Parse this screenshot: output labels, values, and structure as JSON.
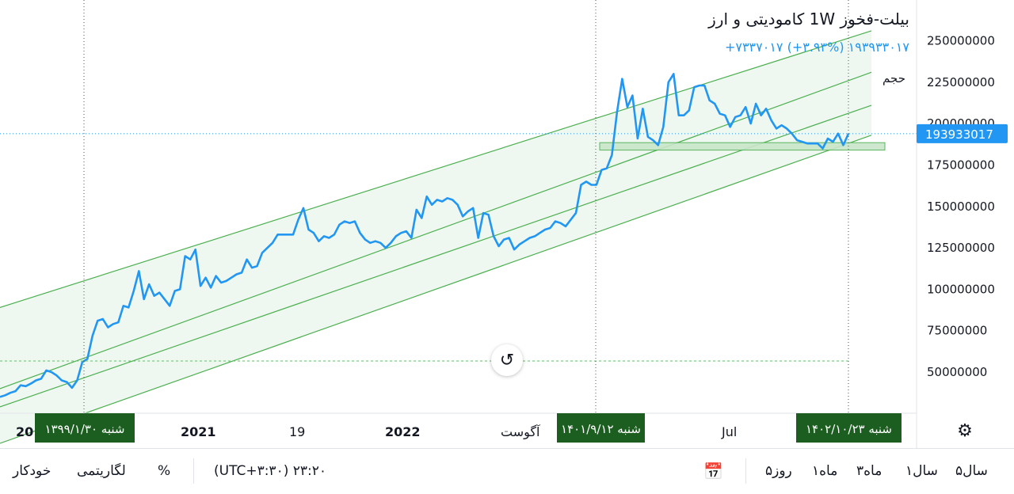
{
  "legend": {
    "title": "بیلت-فخوز 1W کامودیتی و ارز",
    "price": "+۷۳۳۷۰۱۷ (+۳.۹۳%)  ۱۹۳۹۳۳۰۱۷",
    "volume": "حجم"
  },
  "colors": {
    "series": "#2196f3",
    "channel": "#4caf50",
    "channel_fill": "#e8f5e9",
    "last_price_label": "#2196f3",
    "date_label_bg": "#1b5e20"
  },
  "chart_data": {
    "type": "line",
    "y_axis": {
      "ticks": [
        "250000000",
        "225000000",
        "200000000",
        "175000000",
        "150000000",
        "125000000",
        "100000000",
        "75000000",
        "50000000"
      ],
      "range": [
        30000000,
        270000000
      ]
    },
    "x_axis": {
      "ticks": [
        "20",
        "2021",
        "19",
        "2022",
        "آگوست",
        "Jul"
      ],
      "date_labels": [
        "شنبه ۱۳۹۹/۱/۳۰",
        "شنبه ۱۴۰۱/۹/۱۲",
        "شنبه ۱۴۰۲/۱۰/۲۳"
      ]
    },
    "last_price": "193933017",
    "last_value": 193933017,
    "series": [
      {
        "values": [
          35000000,
          36000000,
          37500000,
          38500000,
          42000000,
          41500000,
          43000000,
          45000000,
          46000000,
          51000000,
          50000000,
          48000000,
          45000000,
          44000000,
          40500000,
          45000000,
          56000000,
          58000000,
          72000000,
          81000000,
          82000000,
          77000000,
          79000000,
          80000000,
          90000000,
          89000000,
          99000000,
          111000000,
          94000000,
          103000000,
          96000000,
          98000000,
          94000000,
          90000000,
          99000000,
          100000000,
          120000000,
          118000000,
          124000000,
          102000000,
          107000000,
          101000000,
          108000000,
          104000000,
          105000000,
          107000000,
          109000000,
          110000000,
          118000000,
          113000000,
          114000000,
          122000000,
          125000000,
          128000000,
          133000000,
          133000000,
          133000000,
          133000000,
          142000000,
          149000000,
          136000000,
          134000000,
          129000000,
          132000000,
          131000000,
          133000000,
          139000000,
          141000000,
          140000000,
          141000000,
          134000000,
          130000000,
          128000000,
          129000000,
          128000000,
          125000000,
          128000000,
          132000000,
          134000000,
          135000000,
          131000000,
          148000000,
          143000000,
          156000000,
          151000000,
          154000000,
          153000000,
          155000000,
          154000000,
          151000000,
          144000000,
          147000000,
          149000000,
          131000000,
          146000000,
          145000000,
          132000000,
          126000000,
          130000000,
          131000000,
          124000000,
          127000000,
          129000000,
          131000000,
          132000000,
          134000000,
          136000000,
          137000000,
          141000000,
          140000000,
          138000000,
          142000000,
          146000000,
          163000000,
          165000000,
          163000000,
          163000000,
          172000000,
          173000000,
          181000000,
          207000000,
          227000000,
          210000000,
          217000000,
          191000000,
          209000000,
          192000000,
          190000000,
          187000000,
          198000000,
          225000000,
          230000000,
          205000000,
          205000000,
          208000000,
          222000000,
          223000000,
          223000000,
          214000000,
          212000000,
          206000000,
          205000000,
          198000000,
          204000000,
          205000000,
          210000000,
          200000000,
          212000000,
          205000000,
          209000000,
          202000000,
          197000000,
          199000000,
          197000000,
          194000000,
          190000000,
          189000000,
          188000000,
          188000000,
          188000000,
          185000000,
          191000000,
          189000000,
          194000000,
          187000000,
          193900000
        ]
      }
    ],
    "channel_lines": [
      {
        "start": 89000000,
        "end": 256000000
      },
      {
        "start": 40000000,
        "end": 231000000
      },
      {
        "start": 29000000,
        "end": 211000000
      },
      {
        "start": 7000000,
        "end": 193000000
      }
    ],
    "support_zone": [
      184000000,
      188500000
    ]
  },
  "toolbar": {
    "auto": "خودکار",
    "log": "لگاریتمی",
    "percent": "%",
    "time": "(UTC+۳:۳۰) ۲۳:۲۰",
    "ranges": [
      "۵روز",
      "۱ماه",
      "۳ماه",
      "۱سال",
      "۵سال"
    ]
  },
  "icons": {
    "reset": "↺",
    "settings": "⚙",
    "calendar": "📅"
  }
}
